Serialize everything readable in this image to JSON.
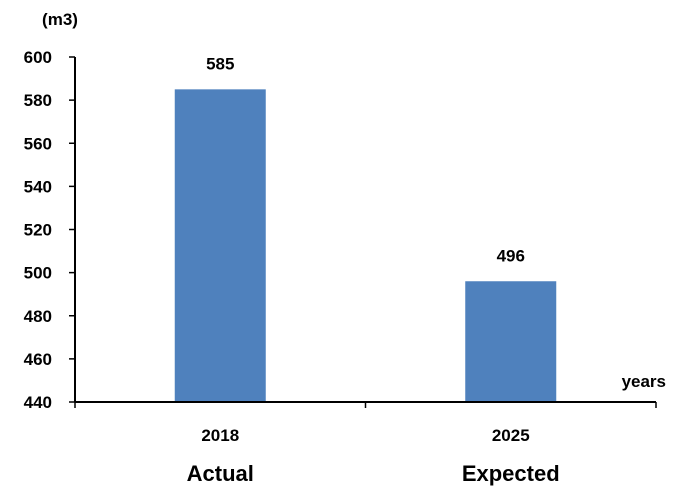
{
  "chart_data": {
    "type": "bar",
    "categories": [
      "2018",
      "2025"
    ],
    "sub_labels": [
      "Actual",
      "Expected"
    ],
    "values": [
      585,
      496
    ],
    "data_labels": [
      "585",
      "496"
    ],
    "ylabel": "(m3)",
    "xlabel": "years",
    "ylim": [
      440,
      600
    ],
    "yticks": [
      440,
      460,
      480,
      500,
      520,
      540,
      560,
      580,
      600
    ],
    "grid": false,
    "legend": "none",
    "bar_color": "#4f81bd",
    "axis_color": "#000000"
  }
}
